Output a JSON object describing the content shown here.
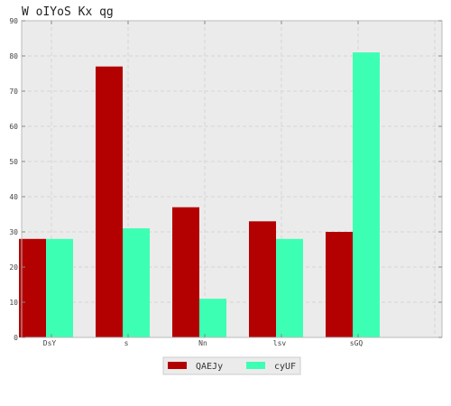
{
  "chart_data": {
    "type": "bar",
    "title": "W oIYoS Kx qg",
    "xlabel": "",
    "ylabel": "",
    "categories": [
      "DsY",
      "s",
      "Nn",
      "lsv",
      "sGQ"
    ],
    "series": [
      {
        "name": "QAEJy",
        "values": [
          28,
          77,
          37,
          33,
          30
        ],
        "color": "#b30000"
      },
      {
        "name": "cyUF",
        "values": [
          28,
          31,
          11,
          28,
          81
        ],
        "color": "#3dffb4"
      }
    ],
    "ylim": [
      0,
      90
    ],
    "yticks": [
      0,
      10,
      20,
      30,
      40,
      50,
      60,
      70,
      80,
      90
    ],
    "grid": true,
    "legend_position": "bottom-center",
    "colors": {
      "background": "#ebebeb",
      "grid": "#d6d6d6"
    }
  }
}
